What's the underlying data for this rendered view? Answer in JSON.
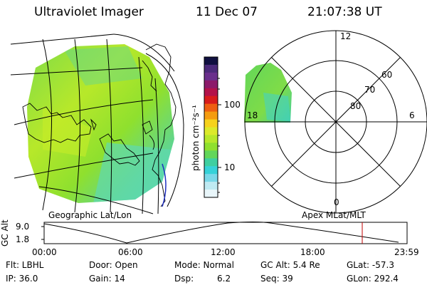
{
  "header": {
    "title": "Ultraviolet Imager",
    "date": "11 Dec 07",
    "time": "21:07:38 UT"
  },
  "geo_panel": {
    "label": "Geographic Lat/Lon"
  },
  "colorbar": {
    "unit_label": "photon cm⁻²s⁻¹",
    "ticks": [
      "100",
      "10"
    ],
    "colors": [
      "#101040",
      "#4b2a7a",
      "#6a2f8c",
      "#8c1a6a",
      "#b3124a",
      "#d81c1c",
      "#ee5f12",
      "#f59c10",
      "#f6d21c",
      "#dcea2a",
      "#b7e82a",
      "#8fe02e",
      "#62d65a",
      "#3fcfa0",
      "#36d2d8",
      "#7ad8e8",
      "#bfeaf2",
      "#e9f6fa"
    ]
  },
  "polar_panel": {
    "label": "Apex MLat/MLT",
    "mlt_labels": {
      "top": "12",
      "left": "18",
      "right": "6",
      "bottom": "0"
    },
    "lat_labels": [
      "80",
      "70",
      "60"
    ]
  },
  "orbit_plot": {
    "ylabel": "GC Alt",
    "y_ticks": [
      "9.0",
      "1.8"
    ],
    "x_ticks": [
      "00:00",
      "06:00",
      "12:00",
      "18:00",
      "23:59"
    ]
  },
  "footer": {
    "row1": {
      "flt": "Flt: LBHL",
      "door": "Door: Open",
      "mode": "Mode: Normal",
      "gcalt": "GC Alt: 5.4 Re",
      "glat": "GLat: -57.3"
    },
    "row2": {
      "ip": "IP: 36.0",
      "gain": "Gain: 14",
      "dsp_label": "Dsp:",
      "dsp_value": "6.2",
      "seq": "Seq: 39",
      "glon": "GLon: 292.4"
    }
  }
}
